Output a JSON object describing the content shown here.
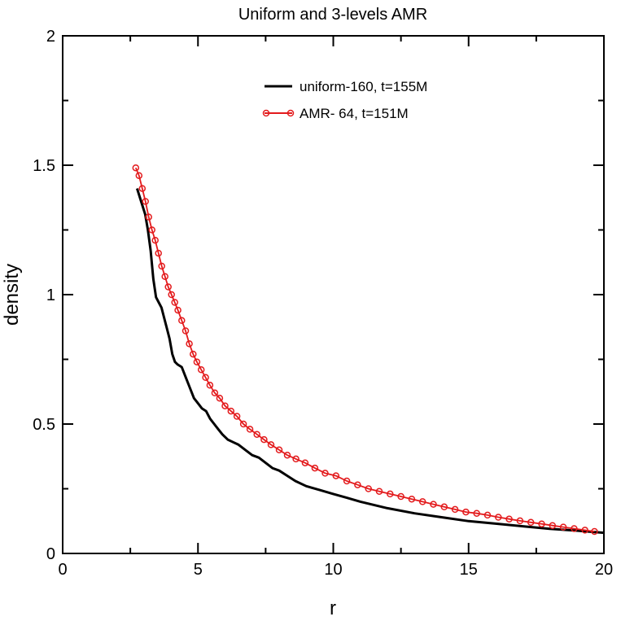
{
  "chart_data": {
    "type": "line",
    "title": "Uniform and 3-levels AMR",
    "xlabel": "r",
    "ylabel": "density",
    "xlim": [
      0,
      20
    ],
    "ylim": [
      0,
      2
    ],
    "x_ticks": [
      0,
      5,
      10,
      15,
      20
    ],
    "x_tick_labels": [
      "0",
      "5",
      "10",
      "15",
      "20"
    ],
    "y_ticks": [
      0,
      0.5,
      1,
      1.5,
      2
    ],
    "y_tick_labels": [
      "0",
      "0.5",
      "1",
      "1.5",
      "2"
    ],
    "grid": false,
    "legend_position": "top-right",
    "series": [
      {
        "name": "uniform-160,  t=155M",
        "color": "#000000",
        "marker": "none",
        "x": [
          2.75,
          2.9,
          3.05,
          3.15,
          3.25,
          3.35,
          3.45,
          3.55,
          3.65,
          3.75,
          3.85,
          3.95,
          4.05,
          4.15,
          4.25,
          4.4,
          4.55,
          4.7,
          4.85,
          5.0,
          5.15,
          5.3,
          5.45,
          5.6,
          5.75,
          5.9,
          6.1,
          6.3,
          6.5,
          6.75,
          7.0,
          7.25,
          7.5,
          7.75,
          8.0,
          8.3,
          8.6,
          9.0,
          9.5,
          10.0,
          10.5,
          11.0,
          12.0,
          13.0,
          14.0,
          15.0,
          16.0,
          17.0,
          18.0,
          19.0,
          20.0
        ],
        "y": [
          1.41,
          1.36,
          1.31,
          1.25,
          1.17,
          1.06,
          0.99,
          0.97,
          0.95,
          0.91,
          0.87,
          0.83,
          0.77,
          0.74,
          0.73,
          0.72,
          0.68,
          0.64,
          0.6,
          0.58,
          0.56,
          0.55,
          0.52,
          0.5,
          0.48,
          0.46,
          0.44,
          0.43,
          0.42,
          0.4,
          0.38,
          0.37,
          0.35,
          0.33,
          0.32,
          0.3,
          0.28,
          0.26,
          0.245,
          0.23,
          0.215,
          0.2,
          0.175,
          0.155,
          0.14,
          0.125,
          0.115,
          0.105,
          0.095,
          0.088,
          0.08
        ]
      },
      {
        "name": "AMR- 64,  t=151M",
        "color": "#e31a1c",
        "marker": "circle",
        "x": [
          2.7,
          2.82,
          2.94,
          3.06,
          3.18,
          3.3,
          3.42,
          3.54,
          3.66,
          3.78,
          3.9,
          4.02,
          4.14,
          4.26,
          4.4,
          4.54,
          4.68,
          4.82,
          4.96,
          5.12,
          5.28,
          5.44,
          5.62,
          5.8,
          6.0,
          6.22,
          6.44,
          6.68,
          6.92,
          7.18,
          7.44,
          7.7,
          8.0,
          8.3,
          8.62,
          8.96,
          9.32,
          9.7,
          10.1,
          10.5,
          10.9,
          11.3,
          11.7,
          12.1,
          12.5,
          12.9,
          13.3,
          13.7,
          14.1,
          14.5,
          14.9,
          15.3,
          15.7,
          16.1,
          16.5,
          16.9,
          17.3,
          17.7,
          18.1,
          18.5,
          18.9,
          19.3,
          19.65
        ],
        "y": [
          1.49,
          1.46,
          1.41,
          1.36,
          1.3,
          1.25,
          1.21,
          1.16,
          1.11,
          1.07,
          1.03,
          1.0,
          0.97,
          0.94,
          0.9,
          0.86,
          0.81,
          0.77,
          0.74,
          0.71,
          0.68,
          0.65,
          0.62,
          0.6,
          0.57,
          0.55,
          0.53,
          0.5,
          0.48,
          0.46,
          0.44,
          0.42,
          0.4,
          0.38,
          0.365,
          0.35,
          0.33,
          0.31,
          0.3,
          0.28,
          0.265,
          0.25,
          0.24,
          0.23,
          0.22,
          0.21,
          0.2,
          0.19,
          0.18,
          0.17,
          0.16,
          0.155,
          0.148,
          0.14,
          0.133,
          0.126,
          0.12,
          0.114,
          0.108,
          0.102,
          0.096,
          0.09,
          0.085
        ]
      }
    ]
  }
}
